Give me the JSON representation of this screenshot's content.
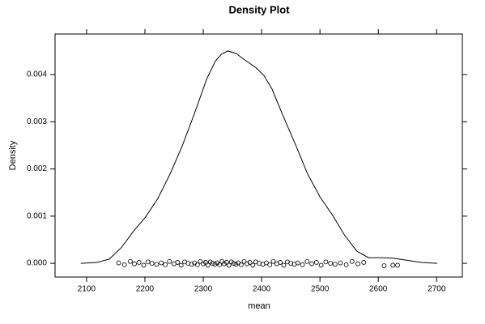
{
  "chart_data": {
    "type": "density",
    "title": "Density Plot",
    "x_label": "mean",
    "y_label": "Density",
    "xlim": [
      2046,
      2744
    ],
    "ylim": [
      -0.00029,
      0.00486
    ],
    "xticks": [
      2100,
      2200,
      2300,
      2400,
      2500,
      2600,
      2700
    ],
    "yticks": [
      {
        "value": 0,
        "label": "0.000"
      },
      {
        "value": 0.001,
        "label": "0.001"
      },
      {
        "value": 0.002,
        "label": "0.002"
      },
      {
        "value": 0.003,
        "label": "0.003"
      },
      {
        "value": 0.004,
        "label": "0.004"
      }
    ],
    "color": "#000000",
    "series": [
      {
        "x": [
          2090,
          2118,
          2139,
          2160,
          2181,
          2201,
          2222,
          2243,
          2264,
          2285,
          2306,
          2321,
          2331,
          2342,
          2356,
          2369,
          2390,
          2404,
          2418,
          2438,
          2459,
          2479,
          2500,
          2521,
          2542,
          2563,
          2583,
          2604,
          2625,
          2646,
          2674,
          2701
        ],
        "values": [
          0,
          2e-05,
          9e-05,
          0.00034,
          0.00069,
          0.00098,
          0.00137,
          0.00189,
          0.00249,
          0.00318,
          0.00391,
          0.00429,
          0.00443,
          0.0045,
          0.00445,
          0.00433,
          0.00415,
          0.00398,
          0.00369,
          0.00309,
          0.00249,
          0.00189,
          0.00141,
          0.00103,
          0.0006,
          0.00026,
          0.00012,
          0.00012,
          0.00011,
          7e-05,
          2e-05,
          0
        ]
      }
    ],
    "points": {
      "x": [
        2155,
        2165,
        2175,
        2182,
        2190,
        2198,
        2205,
        2212,
        2220,
        2228,
        2235,
        2242,
        2250,
        2256,
        2262,
        2268,
        2274,
        2280,
        2285,
        2290,
        2295,
        2300,
        2304,
        2308,
        2312,
        2316,
        2320,
        2324,
        2328,
        2332,
        2336,
        2340,
        2344,
        2348,
        2352,
        2356,
        2360,
        2365,
        2370,
        2375,
        2380,
        2385,
        2390,
        2396,
        2402,
        2408,
        2414,
        2420,
        2426,
        2432,
        2438,
        2444,
        2450,
        2456,
        2462,
        2470,
        2478,
        2486,
        2494,
        2502,
        2510,
        2518,
        2526,
        2535,
        2545,
        2555,
        2565,
        2575,
        2610,
        2625,
        2633
      ],
      "values": [
        1e-05,
        -3e-05,
        4e-05,
        -1e-05,
        2e-05,
        -4e-05,
        3e-05,
        0,
        -2e-05,
        1e-05,
        -3e-05,
        4e-05,
        -1e-05,
        2e-05,
        -4e-05,
        3e-05,
        0,
        -2e-05,
        1e-05,
        -3e-05,
        4e-05,
        -1e-05,
        2e-05,
        -4e-05,
        3e-05,
        0,
        -2e-05,
        1e-05,
        -3e-05,
        4e-05,
        -1e-05,
        2e-05,
        -4e-05,
        3e-05,
        0,
        -2e-05,
        1e-05,
        -3e-05,
        4e-05,
        -1e-05,
        2e-05,
        -4e-05,
        3e-05,
        0,
        -2e-05,
        1e-05,
        -3e-05,
        4e-05,
        -1e-05,
        2e-05,
        -4e-05,
        3e-05,
        0,
        -2e-05,
        1e-05,
        -3e-05,
        4e-05,
        -1e-05,
        2e-05,
        -4e-05,
        3e-05,
        0,
        -2e-05,
        1e-05,
        -3e-05,
        4e-05,
        -1e-05,
        2e-05,
        -5e-05,
        -4e-05,
        -4e-05
      ]
    }
  }
}
